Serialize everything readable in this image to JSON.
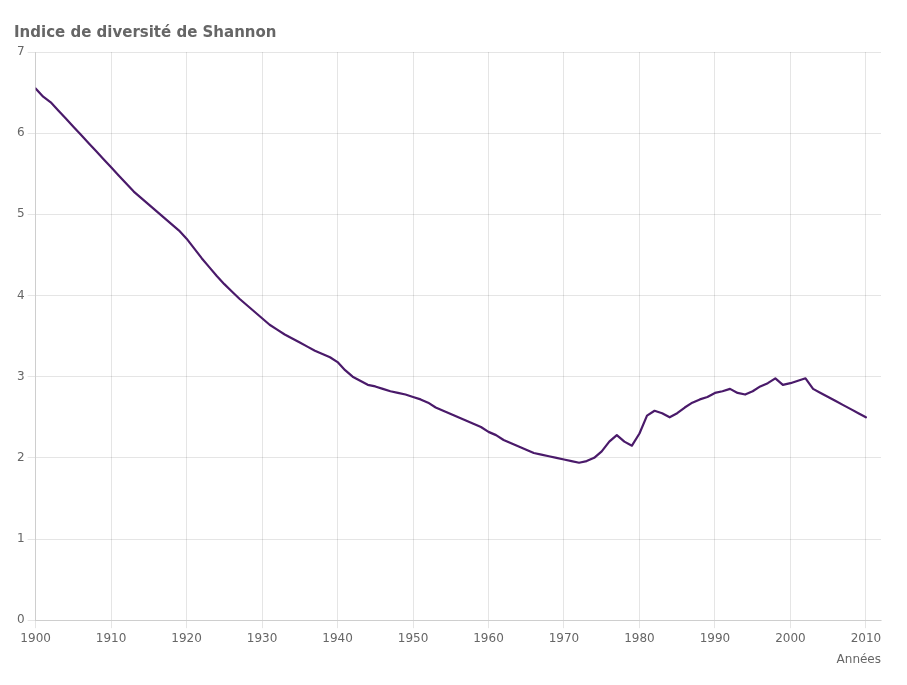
{
  "chart_data": {
    "type": "line",
    "title": "Indice de diversité de Shannon",
    "xlabel": "Années",
    "color": "#4a1a6a",
    "grid": true,
    "xlim": [
      1900,
      2012
    ],
    "ylim": [
      0,
      7
    ],
    "xticks": [
      1900,
      1910,
      1920,
      1930,
      1940,
      1950,
      1960,
      1970,
      1980,
      1990,
      2000,
      2010
    ],
    "yticks": [
      0,
      1,
      2,
      3,
      4,
      5,
      6,
      7
    ],
    "x": [
      1900,
      1901,
      1902,
      1903,
      1904,
      1905,
      1906,
      1907,
      1908,
      1909,
      1910,
      1911,
      1912,
      1913,
      1914,
      1915,
      1916,
      1917,
      1918,
      1919,
      1920,
      1921,
      1922,
      1923,
      1924,
      1925,
      1926,
      1927,
      1928,
      1929,
      1930,
      1931,
      1932,
      1933,
      1934,
      1935,
      1936,
      1937,
      1938,
      1939,
      1940,
      1941,
      1942,
      1943,
      1944,
      1945,
      1946,
      1947,
      1948,
      1949,
      1950,
      1951,
      1952,
      1953,
      1954,
      1955,
      1956,
      1957,
      1958,
      1959,
      1960,
      1961,
      1962,
      1963,
      1964,
      1965,
      1966,
      1967,
      1968,
      1969,
      1970,
      1971,
      1972,
      1973,
      1974,
      1975,
      1976,
      1977,
      1978,
      1979,
      1980,
      1981,
      1982,
      1983,
      1984,
      1985,
      1986,
      1987,
      1988,
      1989,
      1990,
      1991,
      1992,
      1993,
      1994,
      1995,
      1996,
      1997,
      1998,
      1999,
      2000,
      2001,
      2002,
      2003,
      2004,
      2005,
      2006,
      2007,
      2008,
      2009,
      2010
    ],
    "values": [
      6.55,
      6.45,
      6.38,
      6.28,
      6.18,
      6.08,
      5.98,
      5.88,
      5.78,
      5.68,
      5.58,
      5.48,
      5.38,
      5.28,
      5.2,
      5.12,
      5.04,
      4.96,
      4.88,
      4.8,
      4.7,
      4.58,
      4.46,
      4.35,
      4.24,
      4.14,
      4.05,
      3.96,
      3.88,
      3.8,
      3.72,
      3.64,
      3.58,
      3.52,
      3.47,
      3.42,
      3.37,
      3.32,
      3.28,
      3.24,
      3.18,
      3.08,
      3.0,
      2.95,
      2.9,
      2.88,
      2.85,
      2.82,
      2.8,
      2.78,
      2.75,
      2.72,
      2.68,
      2.62,
      2.58,
      2.54,
      2.5,
      2.46,
      2.42,
      2.38,
      2.32,
      2.28,
      2.22,
      2.18,
      2.14,
      2.1,
      2.06,
      2.04,
      2.02,
      2.0,
      1.98,
      1.96,
      1.94,
      1.96,
      2.0,
      2.08,
      2.2,
      2.28,
      2.2,
      2.15,
      2.3,
      2.52,
      2.58,
      2.55,
      2.5,
      2.55,
      2.62,
      2.68,
      2.72,
      2.75,
      2.8,
      2.82,
      2.85,
      2.8,
      2.78,
      2.82,
      2.88,
      2.92,
      2.98,
      2.9,
      2.92,
      2.95,
      2.98,
      2.85,
      2.8,
      2.75,
      2.7,
      2.65,
      2.6,
      2.55,
      2.5
    ]
  }
}
